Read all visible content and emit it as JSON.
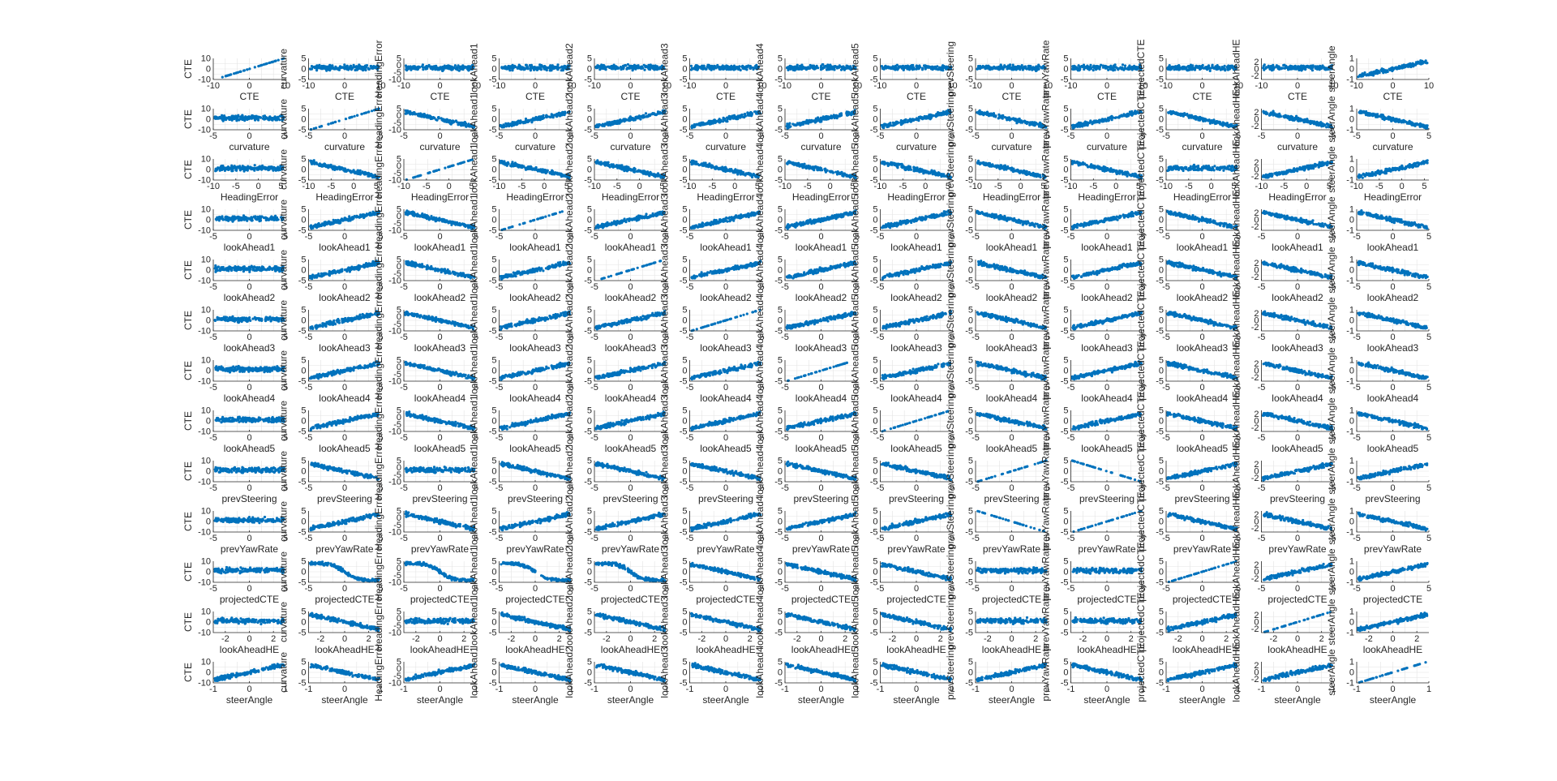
{
  "chart_data": {
    "type": "scatter",
    "layout": "scatter-matrix",
    "grid": true,
    "marker_color": "#0072BD",
    "variables": [
      "CTE",
      "curvature",
      "HeadingError",
      "lookAhead1",
      "lookAhead2",
      "lookAhead3",
      "lookAhead4",
      "lookAhead5",
      "prevSteering",
      "prevYawRate",
      "projectedCTE",
      "lookAheadHE",
      "steerAngle"
    ],
    "x_axes": {
      "CTE": {
        "range": [
          -10,
          10
        ],
        "ticks": [
          "-10",
          "0",
          "10"
        ]
      },
      "curvature": {
        "range": [
          -5,
          5
        ],
        "ticks": [
          "-5",
          "0",
          "5"
        ]
      },
      "HeadingError": {
        "range": [
          -10,
          6
        ],
        "ticks": [
          "-10",
          "-5",
          "0",
          "5"
        ]
      },
      "lookAhead1": {
        "range": [
          -5,
          5
        ],
        "ticks": [
          "-5",
          "0",
          "5"
        ]
      },
      "lookAhead2": {
        "range": [
          -5,
          5
        ],
        "ticks": [
          "-5",
          "0",
          "5"
        ]
      },
      "lookAhead3": {
        "range": [
          -5,
          5
        ],
        "ticks": [
          "-5",
          "0",
          "5"
        ]
      },
      "lookAhead4": {
        "range": [
          -5,
          5
        ],
        "ticks": [
          "-5",
          "0",
          "5"
        ]
      },
      "lookAhead5": {
        "range": [
          -5,
          5
        ],
        "ticks": [
          "-5",
          "0",
          "5"
        ]
      },
      "prevSteering": {
        "range": [
          -5,
          5
        ],
        "ticks": [
          "-5",
          "0",
          "5"
        ]
      },
      "prevYawRate": {
        "range": [
          -5,
          5
        ],
        "ticks": [
          "-5",
          "0",
          "5"
        ]
      },
      "projectedCTE": {
        "range": [
          -5,
          5
        ],
        "ticks": [
          "-5",
          "0",
          "5"
        ]
      },
      "lookAheadHE": {
        "range": [
          -3,
          3
        ],
        "ticks": [
          "-2",
          "0",
          "2"
        ]
      },
      "steerAngle": {
        "range": [
          -1,
          1
        ],
        "ticks": [
          "-1",
          "0",
          "1"
        ]
      }
    },
    "y_axes": {
      "CTE": {
        "range": [
          -10,
          10
        ],
        "ticks": [
          "-10",
          "0",
          "10"
        ]
      },
      "curvature": {
        "range": [
          -5,
          5
        ],
        "ticks": [
          "-5",
          "0",
          "5"
        ]
      },
      "HeadingError": {
        "range": [
          -10,
          5
        ],
        "ticks": [
          "-10",
          "-5",
          "0",
          "5"
        ]
      },
      "lookAhead1": {
        "range": [
          -5,
          5
        ],
        "ticks": [
          "-5",
          "0",
          "5"
        ]
      },
      "lookAhead2": {
        "range": [
          -5,
          5
        ],
        "ticks": [
          "-5",
          "0",
          "5"
        ]
      },
      "lookAhead3": {
        "range": [
          -5,
          5
        ],
        "ticks": [
          "-5",
          "0",
          "5"
        ]
      },
      "lookAhead4": {
        "range": [
          -5,
          5
        ],
        "ticks": [
          "-5",
          "0",
          "5"
        ]
      },
      "lookAhead5": {
        "range": [
          -5,
          5
        ],
        "ticks": [
          "-5",
          "0",
          "5"
        ]
      },
      "prevSteering": {
        "range": [
          -5,
          5
        ],
        "ticks": [
          "-5",
          "0",
          "5"
        ]
      },
      "prevYawRate": {
        "range": [
          -5,
          5
        ],
        "ticks": [
          "-5",
          "0",
          "5"
        ]
      },
      "projectedCTE": {
        "range": [
          -5,
          5
        ],
        "ticks": [
          "-5",
          "0",
          "5"
        ]
      },
      "lookAheadHE": {
        "range": [
          -3,
          3
        ],
        "ticks": [
          "-2",
          "0",
          "2"
        ]
      },
      "steerAngle": {
        "range": [
          -1,
          1
        ],
        "ticks": [
          "-1",
          "0",
          "1"
        ]
      }
    },
    "panel_shape_key": {
      "L": "perfect positive linear relation (variable plotted against itself)",
      "N": "perfect negative linear relation",
      "P": "strong positive correlation, dense band",
      "Q": "strong negative correlation, dense band",
      "S": "S-shaped / looping band",
      "C": "diffuse horizontal cloud"
    },
    "panel_shapes": [
      "LCCCCCCCCCCCP",
      "CLQPPPPPQPQQQ",
      "CQLQQQQQQQCPP",
      "CPQLPPPPQPQQQ",
      "CPQPLPPPQPQQQ",
      "CPQPPLPPQPQQQ",
      "CPQPPPLPQPQQQ",
      "CPQPPPPLQPQQQ",
      "CQCQQQQQLNPPP",
      "CPQPPPPPNLQQQ",
      "CSSSSQQQCCLPP",
      "CQCQQQQQCCPLP",
      "PQPQQQQQPQPPL"
    ]
  }
}
